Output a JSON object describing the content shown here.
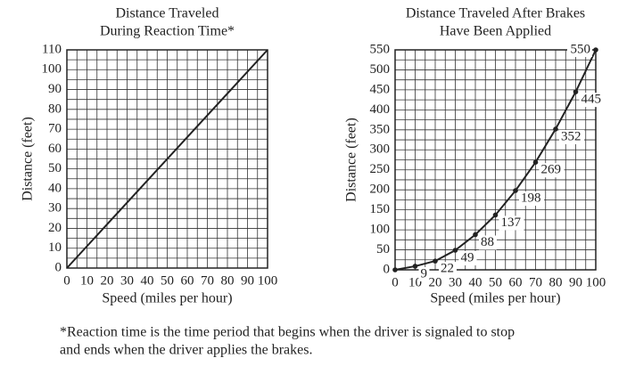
{
  "chart_data": [
    {
      "type": "line",
      "title": [
        "Distance Traveled",
        "During Reaction Time*"
      ],
      "x_label": "Speed (miles per hour)",
      "y_label": "Distance (feet)",
      "x": [
        0,
        100
      ],
      "values": [
        0,
        110
      ],
      "color": "#222222",
      "xlim": [
        0,
        100
      ],
      "ylim": [
        0,
        110
      ],
      "xticks": [
        0,
        10,
        20,
        30,
        40,
        50,
        60,
        70,
        80,
        90,
        100
      ],
      "yticks": [
        0,
        10,
        20,
        30,
        40,
        50,
        60,
        70,
        80,
        90,
        100,
        110
      ],
      "minor_xticks": [
        5,
        15,
        25,
        35,
        45,
        55,
        65,
        75,
        85,
        95
      ],
      "minor_yticks": [
        5,
        15,
        25,
        35,
        45,
        55,
        65,
        75,
        85,
        95,
        105
      ],
      "grid": true
    },
    {
      "type": "line",
      "title": [
        "Distance Traveled After Brakes",
        "Have Been Applied"
      ],
      "x_label": "Speed (miles per hour)",
      "y_label": "Distance (feet)",
      "x": [
        0,
        10,
        20,
        30,
        40,
        50,
        60,
        70,
        80,
        90,
        100
      ],
      "values": [
        0,
        9,
        22,
        49,
        88,
        137,
        198,
        269,
        352,
        445,
        550
      ],
      "value_labels": [
        null,
        "9",
        "22",
        "49",
        "88",
        "137",
        "198",
        "269",
        "352",
        "445",
        "550"
      ],
      "markers": true,
      "color": "#222222",
      "xlim": [
        0,
        100
      ],
      "ylim": [
        0,
        550
      ],
      "xticks": [
        0,
        10,
        20,
        30,
        40,
        50,
        60,
        70,
        80,
        90,
        100
      ],
      "yticks": [
        0,
        50,
        100,
        150,
        200,
        250,
        300,
        350,
        400,
        450,
        500,
        550
      ],
      "minor_xticks": [
        5,
        15,
        25,
        35,
        45,
        55,
        65,
        75,
        85,
        95
      ],
      "minor_yticks": [
        25,
        75,
        125,
        175,
        225,
        275,
        325,
        375,
        425,
        475,
        525
      ],
      "grid": true
    }
  ],
  "footnote": [
    "*Reaction time is the time period that begins when the driver is signaled to stop",
    "and ends when the driver applies the brakes."
  ]
}
